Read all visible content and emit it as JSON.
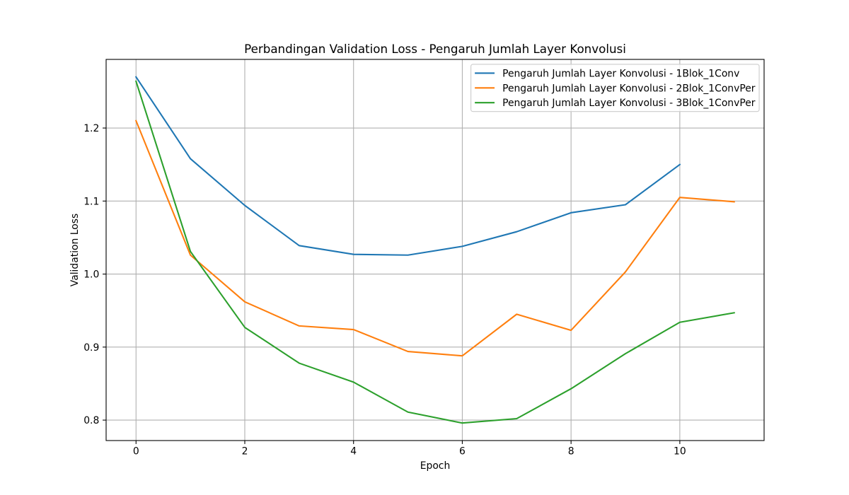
{
  "chart_data": {
    "type": "line",
    "title": "Perbandingan Validation Loss - Pengaruh Jumlah Layer Konvolusi",
    "xlabel": "Epoch",
    "ylabel": "Validation Loss",
    "xlim": [
      -0.55,
      11.55
    ],
    "ylim": [
      0.772,
      1.294
    ],
    "xticks": [
      0,
      2,
      4,
      6,
      8,
      10
    ],
    "xtick_labels": [
      "0",
      "2",
      "4",
      "6",
      "8",
      "10"
    ],
    "yticks": [
      0.8,
      0.9,
      1.0,
      1.1,
      1.2
    ],
    "ytick_labels": [
      "0.8",
      "0.9",
      "1.0",
      "1.1",
      "1.2"
    ],
    "grid": true,
    "legend_position": "top-right",
    "series": [
      {
        "name": "Pengaruh Jumlah Layer Konvolusi - 1Blok_1Conv",
        "color": "#1f77b4",
        "x": [
          0,
          1,
          2,
          3,
          4,
          5,
          6,
          7,
          8,
          9,
          10
        ],
        "y": [
          1.27,
          1.158,
          1.094,
          1.039,
          1.027,
          1.026,
          1.038,
          1.058,
          1.084,
          1.095,
          1.15
        ]
      },
      {
        "name": "Pengaruh Jumlah Layer Konvolusi - 2Blok_1ConvPer",
        "color": "#ff7f0e",
        "x": [
          0,
          1,
          2,
          3,
          4,
          5,
          6,
          7,
          8,
          9,
          10,
          11
        ],
        "y": [
          1.21,
          1.026,
          0.962,
          0.929,
          0.924,
          0.894,
          0.888,
          0.945,
          0.923,
          1.003,
          1.105,
          1.099
        ]
      },
      {
        "name": "Pengaruh Jumlah Layer Konvolusi - 3Blok_1ConvPer",
        "color": "#2ca02c",
        "x": [
          0,
          1,
          2,
          3,
          4,
          5,
          6,
          7,
          8,
          9,
          10,
          11
        ],
        "y": [
          1.264,
          1.031,
          0.927,
          0.878,
          0.852,
          0.811,
          0.796,
          0.802,
          0.843,
          0.891,
          0.934,
          0.947
        ]
      }
    ]
  }
}
